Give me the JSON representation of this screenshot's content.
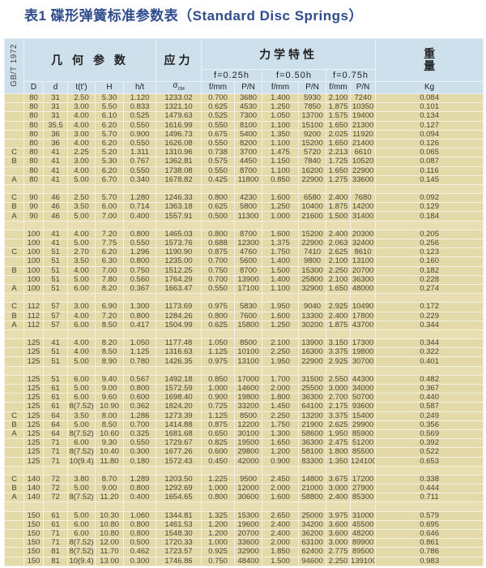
{
  "title": "表1  碟形弹簧标准参数表（Standard Disc Springs）",
  "header": {
    "standard": "GB/T 1972",
    "geometry": "几 何 参 数",
    "stress": "应力",
    "mechanics": "力学特性",
    "weight": "重量",
    "f_groups": [
      "f=0.25h",
      "f=0.50h",
      "f=0.75h"
    ],
    "columns": [
      "D",
      "d",
      "t(t')",
      "H",
      "h/t"
    ],
    "sigma_symbol": "σ",
    "sigma_sub": "OM",
    "pair_columns": [
      "f/mm",
      "P/N"
    ],
    "kg": "Kg"
  },
  "groups": [
    [
      [
        "",
        "80",
        "31",
        "2.50",
        "5.30",
        "1.120",
        "1233.02",
        "0.700",
        "3680",
        "1.400",
        "5930",
        "2.100",
        "7240",
        "0.084"
      ],
      [
        "",
        "80",
        "31",
        "3.00",
        "5.50",
        "0.833",
        "1321.10",
        "0.625",
        "4530",
        "1.250",
        "7850",
        "1.875",
        "10350",
        "0.101"
      ],
      [
        "",
        "80",
        "31",
        "4.00",
        "6.10",
        "0.525",
        "1479.63",
        "0.525",
        "7300",
        "1.050",
        "13700",
        "1.575",
        "19400",
        "0.134"
      ],
      [
        "",
        "80",
        "35.5",
        "4.00",
        "6.20",
        "0.550",
        "1616.99",
        "0.550",
        "8100",
        "1.100",
        "15100",
        "1.650",
        "21300",
        "0.127"
      ],
      [
        "",
        "80",
        "36",
        "3.00",
        "5.70",
        "0.900",
        "1496.73",
        "0.675",
        "5400",
        "1.350",
        "9200",
        "2.025",
        "11920",
        "0.094"
      ],
      [
        "",
        "80",
        "36",
        "4.00",
        "6.20",
        "0.550",
        "1626.08",
        "0.550",
        "8200",
        "1.100",
        "15200",
        "1.650",
        "21400",
        "0.126"
      ],
      [
        "C",
        "80",
        "41",
        "2.25",
        "5.20",
        "1.311",
        "1310.96",
        "0.738",
        "3700",
        "1.475",
        "5720",
        "2.213",
        "6610",
        "0.065"
      ],
      [
        "B",
        "80",
        "41",
        "3.00",
        "5.30",
        "0.767",
        "1362.81",
        "0.575",
        "4450",
        "1.150",
        "7840",
        "1.725",
        "10520",
        "0.087"
      ],
      [
        "",
        "80",
        "41",
        "4.00",
        "6.20",
        "0.550",
        "1738.08",
        "0.550",
        "8700",
        "1.100",
        "16200",
        "1.650",
        "22900",
        "0.116"
      ],
      [
        "A",
        "80",
        "41",
        "5.00",
        "6.70",
        "0.340",
        "1678.82",
        "0.425",
        "11800",
        "0.850",
        "22900",
        "1.275",
        "33600",
        "0.145"
      ]
    ],
    [
      [
        "C",
        "90",
        "46",
        "2.50",
        "5.70",
        "1.280",
        "1246.33",
        "0.800",
        "4230",
        "1.600",
        "6580",
        "2.400",
        "7680",
        "0.092"
      ],
      [
        "B",
        "90",
        "46",
        "3.50",
        "6.00",
        "0.714",
        "1363.18",
        "0.625",
        "5800",
        "1.250",
        "10400",
        "1.875",
        "14200",
        "0.129"
      ],
      [
        "A",
        "90",
        "46",
        "5.00",
        "7.00",
        "0.400",
        "1557.91",
        "0.500",
        "11300",
        "1.000",
        "21600",
        "1.500",
        "31400",
        "0.184"
      ]
    ],
    [
      [
        "",
        "100",
        "41",
        "4.00",
        "7.20",
        "0.800",
        "1465.03",
        "0.800",
        "8700",
        "1.600",
        "15200",
        "2.400",
        "20300",
        "0.205"
      ],
      [
        "",
        "100",
        "41",
        "5.00",
        "7.75",
        "0.550",
        "1573.76",
        "0.688",
        "12300",
        "1.375",
        "22900",
        "2.063",
        "32400",
        "0.256"
      ],
      [
        "C",
        "100",
        "51",
        "2.70",
        "6.20",
        "1.296",
        "1190.90",
        "0.875",
        "4760",
        "1.750",
        "7410",
        "2.625",
        "8610",
        "0.123"
      ],
      [
        "",
        "100",
        "51",
        "3.50",
        "6.30",
        "0.800",
        "1235.00",
        "0.700",
        "5600",
        "1.400",
        "9800",
        "2.100",
        "13100",
        "0.160"
      ],
      [
        "B",
        "100",
        "51",
        "4.00",
        "7.00",
        "0.750",
        "1512.25",
        "0.750",
        "8700",
        "1.500",
        "15300",
        "2.250",
        "20700",
        "0.182"
      ],
      [
        "",
        "100",
        "51",
        "5.00",
        "7.80",
        "0.560",
        "1764.29",
        "0.700",
        "13900",
        "1.400",
        "25800",
        "2.100",
        "36300",
        "0.228"
      ],
      [
        "A",
        "100",
        "51",
        "6.00",
        "8.20",
        "0.367",
        "1663.47",
        "0.550",
        "17100",
        "1.100",
        "32900",
        "1.650",
        "48000",
        "0.274"
      ]
    ],
    [
      [
        "C",
        "112",
        "57",
        "3.00",
        "6.90",
        "1.300",
        "1173.69",
        "0.975",
        "5830",
        "1.950",
        "9040",
        "2.925",
        "10490",
        "0.172"
      ],
      [
        "B",
        "112",
        "57",
        "4.00",
        "7.20",
        "0.800",
        "1284.26",
        "0.800",
        "7600",
        "1.600",
        "13300",
        "2.400",
        "17800",
        "0.229"
      ],
      [
        "A",
        "112",
        "57",
        "6.00",
        "8.50",
        "0.417",
        "1504.99",
        "0.625",
        "15800",
        "1.250",
        "30200",
        "1.875",
        "43700",
        "0.344"
      ]
    ],
    [
      [
        "",
        "125",
        "41",
        "4.00",
        "8.20",
        "1.050",
        "1177.48",
        "1.050",
        "8500",
        "2.100",
        "13900",
        "3.150",
        "17300",
        "0.344"
      ],
      [
        "",
        "125",
        "51",
        "4.00",
        "8.50",
        "1.125",
        "1316.63",
        "1.125",
        "10100",
        "2.250",
        "16300",
        "3.375",
        "19800",
        "0.322"
      ],
      [
        "",
        "125",
        "51",
        "5.00",
        "8.90",
        "0.780",
        "1426.35",
        "0.975",
        "13100",
        "1.950",
        "22900",
        "2.925",
        "30700",
        "0.401"
      ]
    ],
    [
      [
        "",
        "125",
        "51",
        "6.00",
        "9.40",
        "0.567",
        "1492.18",
        "0.850",
        "17000",
        "1.700",
        "31500",
        "2.550",
        "44300",
        "0.482"
      ],
      [
        "",
        "125",
        "61",
        "5.00",
        "9.00",
        "0.800",
        "1572.59",
        "1.000",
        "14600",
        "2.000",
        "25500",
        "3.000",
        "34000",
        "0.367"
      ],
      [
        "",
        "125",
        "61",
        "6.00",
        "9.60",
        "0.600",
        "1698.40",
        "0.900",
        "19800",
        "1.800",
        "36300",
        "2.700",
        "50700",
        "0.440"
      ],
      [
        "",
        "125",
        "61",
        "8(7.52)",
        "10.90",
        "0.362",
        "1824.20",
        "0.725",
        "33200",
        "1.450",
        "64100",
        "2.175",
        "93600",
        "0.587"
      ],
      [
        "C",
        "125",
        "64",
        "3.50",
        "8.00",
        "1.286",
        "1273.39",
        "1.125",
        "8500",
        "2.250",
        "13200",
        "3.375",
        "15400",
        "0.249"
      ],
      [
        "B",
        "125",
        "64",
        "5.00",
        "8.50",
        "0.700",
        "1414.88",
        "0.875",
        "12200",
        "1.750",
        "21900",
        "2.625",
        "29900",
        "0.356"
      ],
      [
        "A",
        "125",
        "64",
        "8(7.52)",
        "10.60",
        "0.325",
        "1681.68",
        "0.650",
        "30100",
        "1.300",
        "58600",
        "1.950",
        "85900",
        "0.569"
      ],
      [
        "",
        "125",
        "71",
        "6.00",
        "9.30",
        "0.550",
        "1729.67",
        "0.825",
        "19500",
        "1.650",
        "36300",
        "2.475",
        "51200",
        "0.392"
      ],
      [
        "",
        "125",
        "71",
        "8(7.52)",
        "10.40",
        "0.300",
        "1677.26",
        "0.600",
        "29800",
        "1.200",
        "58100",
        "1.800",
        "85500",
        "0.522"
      ],
      [
        "",
        "125",
        "71",
        "10(9.4)",
        "11.80",
        "0.180",
        "1572.43",
        "0.450",
        "42000",
        "0.900",
        "83300",
        "1.350",
        "124100",
        "0.653"
      ]
    ],
    [
      [
        "C",
        "140",
        "72",
        "3.80",
        "8.70",
        "1.289",
        "1203.50",
        "1.225",
        "9500",
        "2.450",
        "14800",
        "3.675",
        "17200",
        "0.338"
      ],
      [
        "B",
        "140",
        "72",
        "5.00",
        "9.00",
        "0.800",
        "1292.69",
        "1.000",
        "12000",
        "2.000",
        "21000",
        "3.000",
        "27900",
        "0.444"
      ],
      [
        "A",
        "140",
        "72",
        "8(7.52)",
        "11.20",
        "0.400",
        "1654.65",
        "0.800",
        "30600",
        "1.600",
        "58800",
        "2.400",
        "85300",
        "0.711"
      ]
    ],
    [
      [
        "",
        "150",
        "61",
        "5.00",
        "10.30",
        "1.060",
        "1344.81",
        "1.325",
        "15300",
        "2.650",
        "25000",
        "3.975",
        "31000",
        "0.579"
      ],
      [
        "",
        "150",
        "61",
        "6.00",
        "10.80",
        "0.800",
        "1461.53",
        "1.200",
        "19600",
        "2.400",
        "34200",
        "3.600",
        "45500",
        "0.695"
      ],
      [
        "",
        "150",
        "71",
        "6.00",
        "10.80",
        "0.800",
        "1548.30",
        "1.200",
        "20700",
        "2.400",
        "36200",
        "3.600",
        "48200",
        "0.646"
      ],
      [
        "",
        "150",
        "71",
        "8(7.52)",
        "12.00",
        "0.500",
        "1720.33",
        "1.000",
        "33600",
        "2.000",
        "63100",
        "3.000",
        "89900",
        "0.861"
      ],
      [
        "",
        "150",
        "81",
        "8(7.52)",
        "11.70",
        "0.462",
        "1723.57",
        "0.925",
        "32900",
        "1.850",
        "62400",
        "2.775",
        "89500",
        "0.786"
      ],
      [
        "",
        "150",
        "81",
        "10(9.4)",
        "13.00",
        "0.300",
        "1746.86",
        "0.750",
        "48400",
        "1.500",
        "94600",
        "2.250",
        "139100",
        "0.983"
      ]
    ]
  ]
}
